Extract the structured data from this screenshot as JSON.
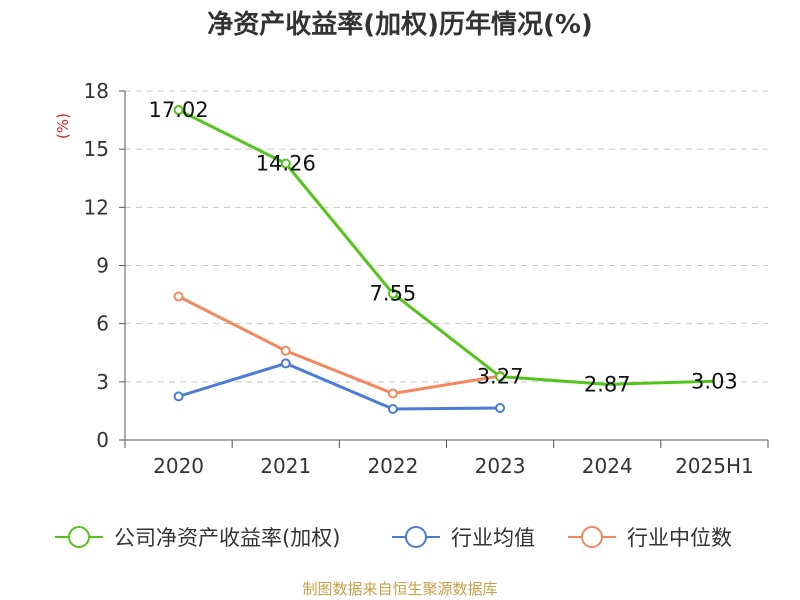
{
  "chart_data": {
    "type": "line",
    "title": "净资产收益率(加权)历年情况(%)",
    "ylabel": "(%)",
    "xlabel": "",
    "categories": [
      "2020",
      "2021",
      "2022",
      "2023",
      "2024",
      "2025H1"
    ],
    "yticks": [
      "0",
      "3",
      "6",
      "9",
      "12",
      "15",
      "18"
    ],
    "ylim": [
      0,
      18
    ],
    "grid": true,
    "legend_position": "bottom",
    "series": [
      {
        "name": "公司净资产收益率(加权)",
        "color": "#52c41a",
        "values": [
          17.02,
          14.26,
          7.55,
          3.27,
          2.87,
          3.03
        ],
        "labels": [
          "17.02",
          "14.26",
          "7.55",
          "3.27",
          "2.87",
          "3.03"
        ],
        "markers": [
          true,
          true,
          true,
          true,
          false,
          false
        ]
      },
      {
        "name": "行业均值",
        "color": "#4b7bd6",
        "values": [
          2.25,
          3.95,
          1.6,
          1.65,
          null,
          null
        ]
      },
      {
        "name": "行业中位数",
        "color": "#f4875e",
        "values": [
          7.4,
          4.6,
          2.4,
          3.3,
          null,
          null
        ]
      }
    ]
  },
  "source": "制图数据来自恒生聚源数据库"
}
